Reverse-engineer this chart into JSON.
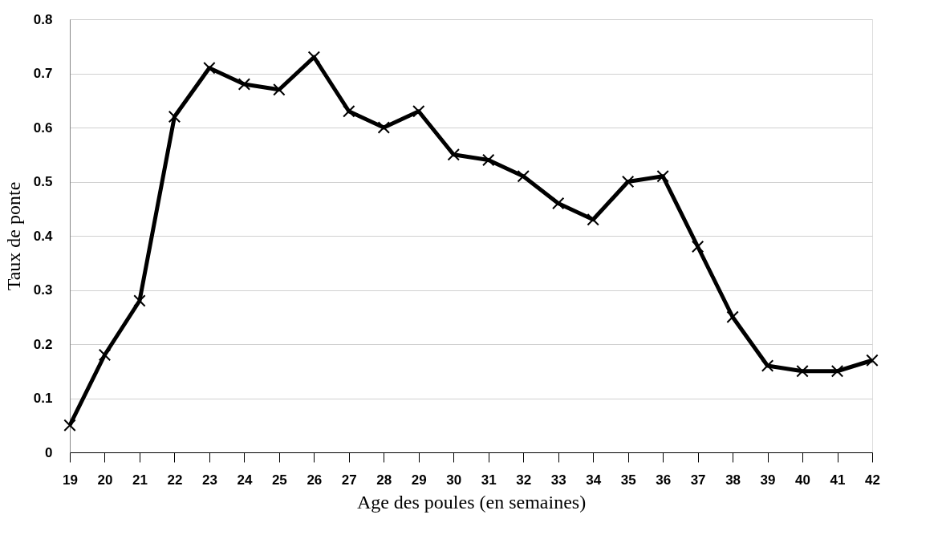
{
  "chart_data": {
    "type": "line",
    "xlabel": "Age des poules (en semaines)",
    "ylabel": "Taux de ponte",
    "categories": [
      "19",
      "20",
      "21",
      "22",
      "23",
      "24",
      "25",
      "26",
      "27",
      "28",
      "29",
      "30",
      "31",
      "32",
      "33",
      "34",
      "35",
      "36",
      "37",
      "38",
      "39",
      "40",
      "41",
      "42"
    ],
    "series": [
      {
        "color": "#000000",
        "values": [
          0.05,
          0.18,
          0.28,
          0.62,
          0.71,
          0.68,
          0.67,
          0.73,
          0.63,
          0.6,
          0.63,
          0.55,
          0.54,
          0.51,
          0.46,
          0.43,
          0.5,
          0.51,
          0.38,
          0.25,
          0.16,
          0.15,
          0.15,
          0.17
        ]
      }
    ],
    "ylim": [
      0,
      0.8
    ],
    "yticks": [
      0,
      0.1,
      0.2,
      0.3,
      0.4,
      0.5,
      0.6,
      0.7,
      0.8
    ],
    "grid": "y",
    "marker": "cross",
    "line_style": "solid",
    "legend": false
  }
}
